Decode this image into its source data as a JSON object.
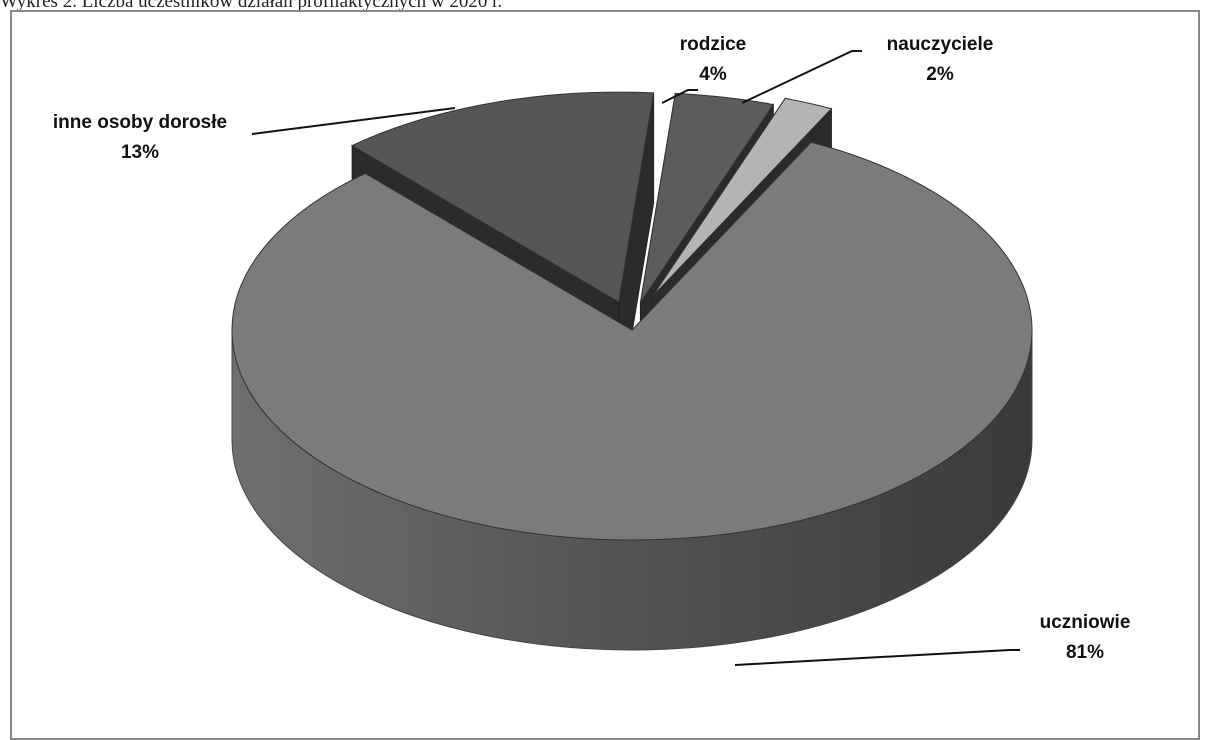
{
  "caption": "Wykres 2. Liczba uczestników działań profilaktycznych w 2020 r.",
  "chart_data": {
    "type": "pie",
    "title": "",
    "slices": [
      {
        "label": "uczniowie",
        "value": 81,
        "value_label": "81%",
        "color": "#7b7b7b"
      },
      {
        "label": "inne osoby dorosłe",
        "value": 13,
        "value_label": "13%",
        "color": "#565656"
      },
      {
        "label": "rodzice",
        "value": 4,
        "value_label": "4%",
        "color": "#5c5c5c"
      },
      {
        "label": "nauczyciele",
        "value": 2,
        "value_label": "2%",
        "color": "#b4b4b4"
      }
    ],
    "style": "3d-exploded",
    "legend": "none"
  }
}
